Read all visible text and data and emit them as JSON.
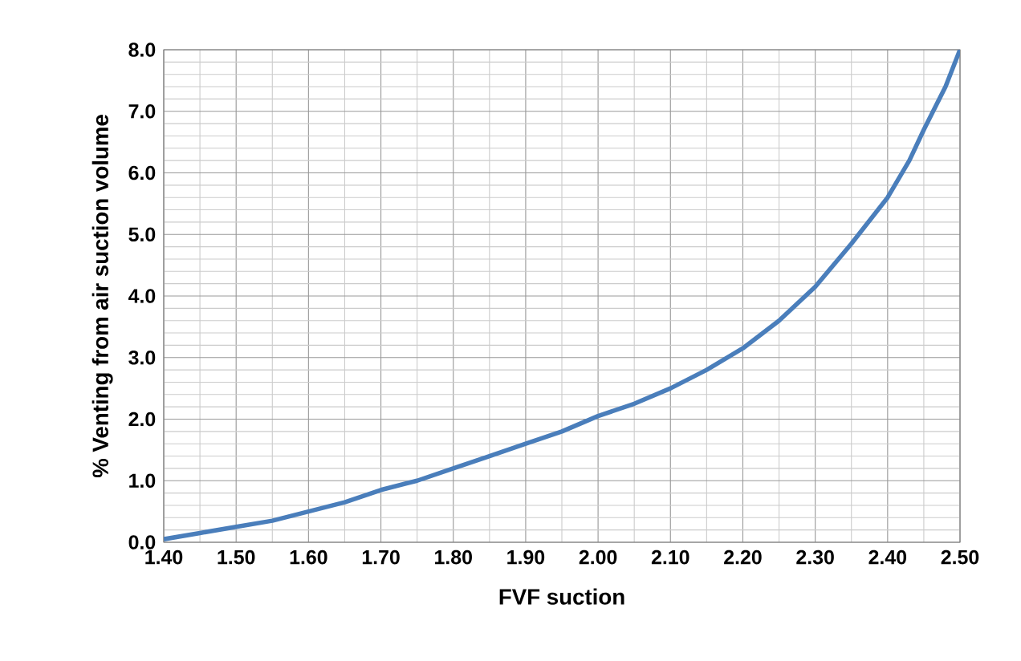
{
  "chart_data": {
    "type": "line",
    "xlabel": "FVF suction",
    "ylabel": "% Venting  from air  suction volume",
    "x": [
      1.4,
      1.45,
      1.5,
      1.55,
      1.6,
      1.65,
      1.7,
      1.75,
      1.8,
      1.85,
      1.9,
      1.95,
      2.0,
      2.05,
      2.1,
      2.15,
      2.2,
      2.25,
      2.3,
      2.35,
      2.4,
      2.43,
      2.45,
      2.48,
      2.5
    ],
    "series": [
      {
        "color": "#4a7ebb",
        "values": [
          0.05,
          0.15,
          0.25,
          0.35,
          0.5,
          0.65,
          0.85,
          1.0,
          1.2,
          1.4,
          1.6,
          1.8,
          2.05,
          2.25,
          2.5,
          2.8,
          3.15,
          3.6,
          4.15,
          4.85,
          5.6,
          6.2,
          6.7,
          7.4,
          8.0
        ]
      }
    ],
    "xlim": [
      1.4,
      2.5
    ],
    "ylim": [
      0,
      8.0
    ],
    "xticks": [
      {
        "value": 1.4,
        "label": "1.40"
      },
      {
        "value": 1.5,
        "label": "1.50"
      },
      {
        "value": 1.6,
        "label": "1.60"
      },
      {
        "value": 1.7,
        "label": "1.70"
      },
      {
        "value": 1.8,
        "label": "1.80"
      },
      {
        "value": 1.9,
        "label": "1.90"
      },
      {
        "value": 2.0,
        "label": "2.00"
      },
      {
        "value": 2.1,
        "label": "2.10"
      },
      {
        "value": 2.2,
        "label": "2.20"
      },
      {
        "value": 2.3,
        "label": "2.30"
      },
      {
        "value": 2.4,
        "label": "2.40"
      },
      {
        "value": 2.5,
        "label": "2.50"
      }
    ],
    "yticks": [
      {
        "value": 0,
        "label": "0.0"
      },
      {
        "value": 1,
        "label": "1.0"
      },
      {
        "value": 2,
        "label": "2.0"
      },
      {
        "value": 3,
        "label": "3.0"
      },
      {
        "value": 4,
        "label": "4.0"
      },
      {
        "value": 5,
        "label": "5.0"
      },
      {
        "value": 6,
        "label": "6.0"
      },
      {
        "value": 7,
        "label": "7.0"
      },
      {
        "value": 8,
        "label": "8.0"
      }
    ],
    "grid": true,
    "marker": "none",
    "line_style": "solid"
  }
}
